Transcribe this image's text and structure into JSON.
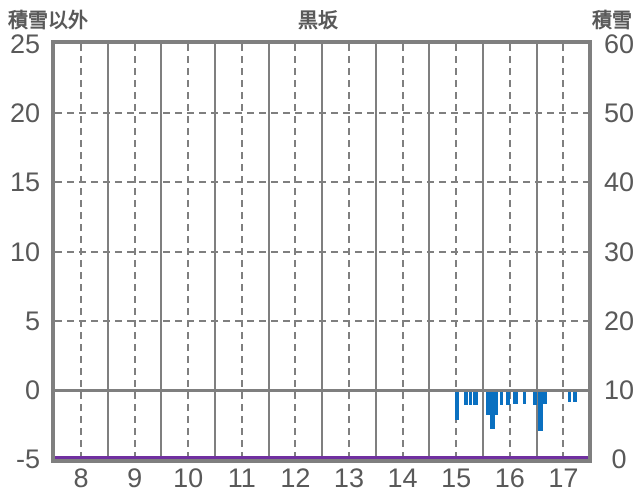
{
  "header": {
    "left_axis_title": "積雪以外",
    "chart_title": "黒坂",
    "right_axis_title": "積雪"
  },
  "chart_data": {
    "type": "bar",
    "title": "黒坂",
    "x": {
      "unit": "hour",
      "ticks": [
        8,
        9,
        10,
        11,
        12,
        13,
        14,
        15,
        16,
        17
      ],
      "min": 7.515,
      "max": 17.46
    },
    "y_left": {
      "label": "積雪以外",
      "ticks": [
        25,
        20,
        15,
        10,
        5,
        0,
        -5
      ],
      "min": -5,
      "max": 25
    },
    "y_right": {
      "label": "積雪",
      "ticks": [
        60,
        50,
        40,
        30,
        20,
        10,
        0
      ],
      "min": 0,
      "max": 60
    },
    "grid": {
      "h_dashed": [
        20,
        15,
        10,
        5
      ],
      "h_solid": [
        0
      ],
      "v_dashed_hours": [
        8,
        9,
        10,
        11,
        12,
        13,
        14,
        15,
        16,
        17
      ],
      "v_solid_hours": [
        8.5,
        9.5,
        10.5,
        11.5,
        12.5,
        13.5,
        14.5,
        15.5,
        16.5
      ]
    },
    "colors": {
      "bar": "#0a70c0",
      "snow_line": "#7030a0",
      "grid": "#7f7f7f",
      "text": "#595959"
    },
    "series": [
      {
        "name": "積雪以外",
        "type": "bar",
        "axis": "left",
        "color": "#0a70c0",
        "bar_width_unit": "hours",
        "points": [
          {
            "t": 15.01,
            "v": -2.2,
            "w": 0.075
          },
          {
            "t": 15.18,
            "v": -1.1,
            "w": 0.075
          },
          {
            "t": 15.27,
            "v": -1.1,
            "w": 0.065
          },
          {
            "t": 15.36,
            "v": -1.1,
            "w": 0.09
          },
          {
            "t": 15.59,
            "v": -1.8,
            "w": 0.075
          },
          {
            "t": 15.68,
            "v": -2.8,
            "w": 0.09
          },
          {
            "t": 15.76,
            "v": -1.8,
            "w": 0.055
          },
          {
            "t": 15.85,
            "v": -1.1,
            "w": 0.065
          },
          {
            "t": 15.97,
            "v": -1.1,
            "w": 0.075
          },
          {
            "t": 16.11,
            "v": -1.0,
            "w": 0.09
          },
          {
            "t": 16.28,
            "v": -1.0,
            "w": 0.05
          },
          {
            "t": 16.47,
            "v": -1.1,
            "w": 0.075
          },
          {
            "t": 16.57,
            "v": -3.0,
            "w": 0.1
          },
          {
            "t": 16.66,
            "v": -1.0,
            "w": 0.085
          },
          {
            "t": 17.11,
            "v": -0.9,
            "w": 0.065
          },
          {
            "t": 17.22,
            "v": -0.9,
            "w": 0.075
          }
        ]
      },
      {
        "name": "積雪",
        "type": "line",
        "axis": "right",
        "color": "#7030a0",
        "constant_value": 0
      }
    ]
  }
}
